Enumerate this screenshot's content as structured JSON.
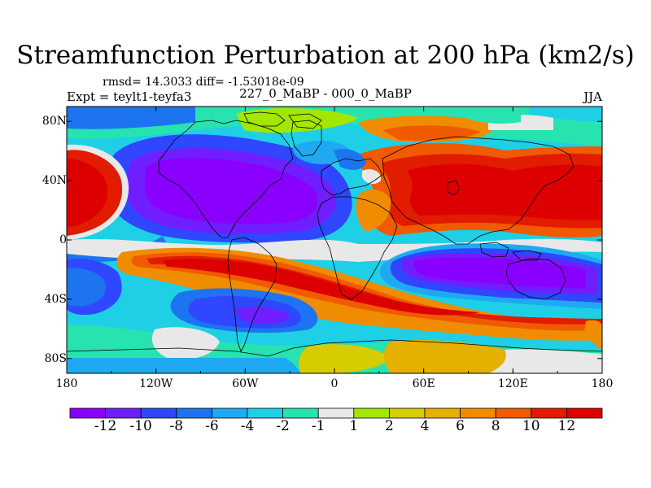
{
  "header": {
    "title": "Streamfunction Perturbation at 200 hPa (km2/s)",
    "stats": "rmsd= 14.3033 diff= -1.53018e-09",
    "experiment": "Expt = teylt1-teyfa3",
    "comparison": "227_0_MaBP - 000_0_MaBP",
    "season": "JJA"
  },
  "map": {
    "x_ticks": [
      {
        "label": "180",
        "lon": -180
      },
      {
        "label": "120W",
        "lon": -120
      },
      {
        "label": "60W",
        "lon": -60
      },
      {
        "label": "0",
        "lon": 0
      },
      {
        "label": "60E",
        "lon": 60
      },
      {
        "label": "120E",
        "lon": 120
      },
      {
        "label": "180",
        "lon": 180
      }
    ],
    "y_ticks": [
      {
        "label": "80N",
        "lat": 80
      },
      {
        "label": "40N",
        "lat": 40
      },
      {
        "label": "0",
        "lat": 0
      },
      {
        "label": "40S",
        "lat": -40
      },
      {
        "label": "80S",
        "lat": -80
      }
    ],
    "lon_range": [
      -180,
      180
    ],
    "lat_range": [
      -90,
      90
    ]
  },
  "colorbar": {
    "colors": [
      "#8a00ff",
      "#6f1fff",
      "#2e47ff",
      "#1d74f0",
      "#1fa9f2",
      "#1fcfe6",
      "#26e3b0",
      "#e8e8e8",
      "#a3e600",
      "#d6cc00",
      "#e6b000",
      "#f08c00",
      "#f05a00",
      "#e11c00",
      "#dd0000"
    ],
    "labels": [
      "-12",
      "-10",
      "-8",
      "-6",
      "-4",
      "-2",
      "-1",
      "1",
      "2",
      "4",
      "6",
      "8",
      "10",
      "12"
    ]
  }
}
